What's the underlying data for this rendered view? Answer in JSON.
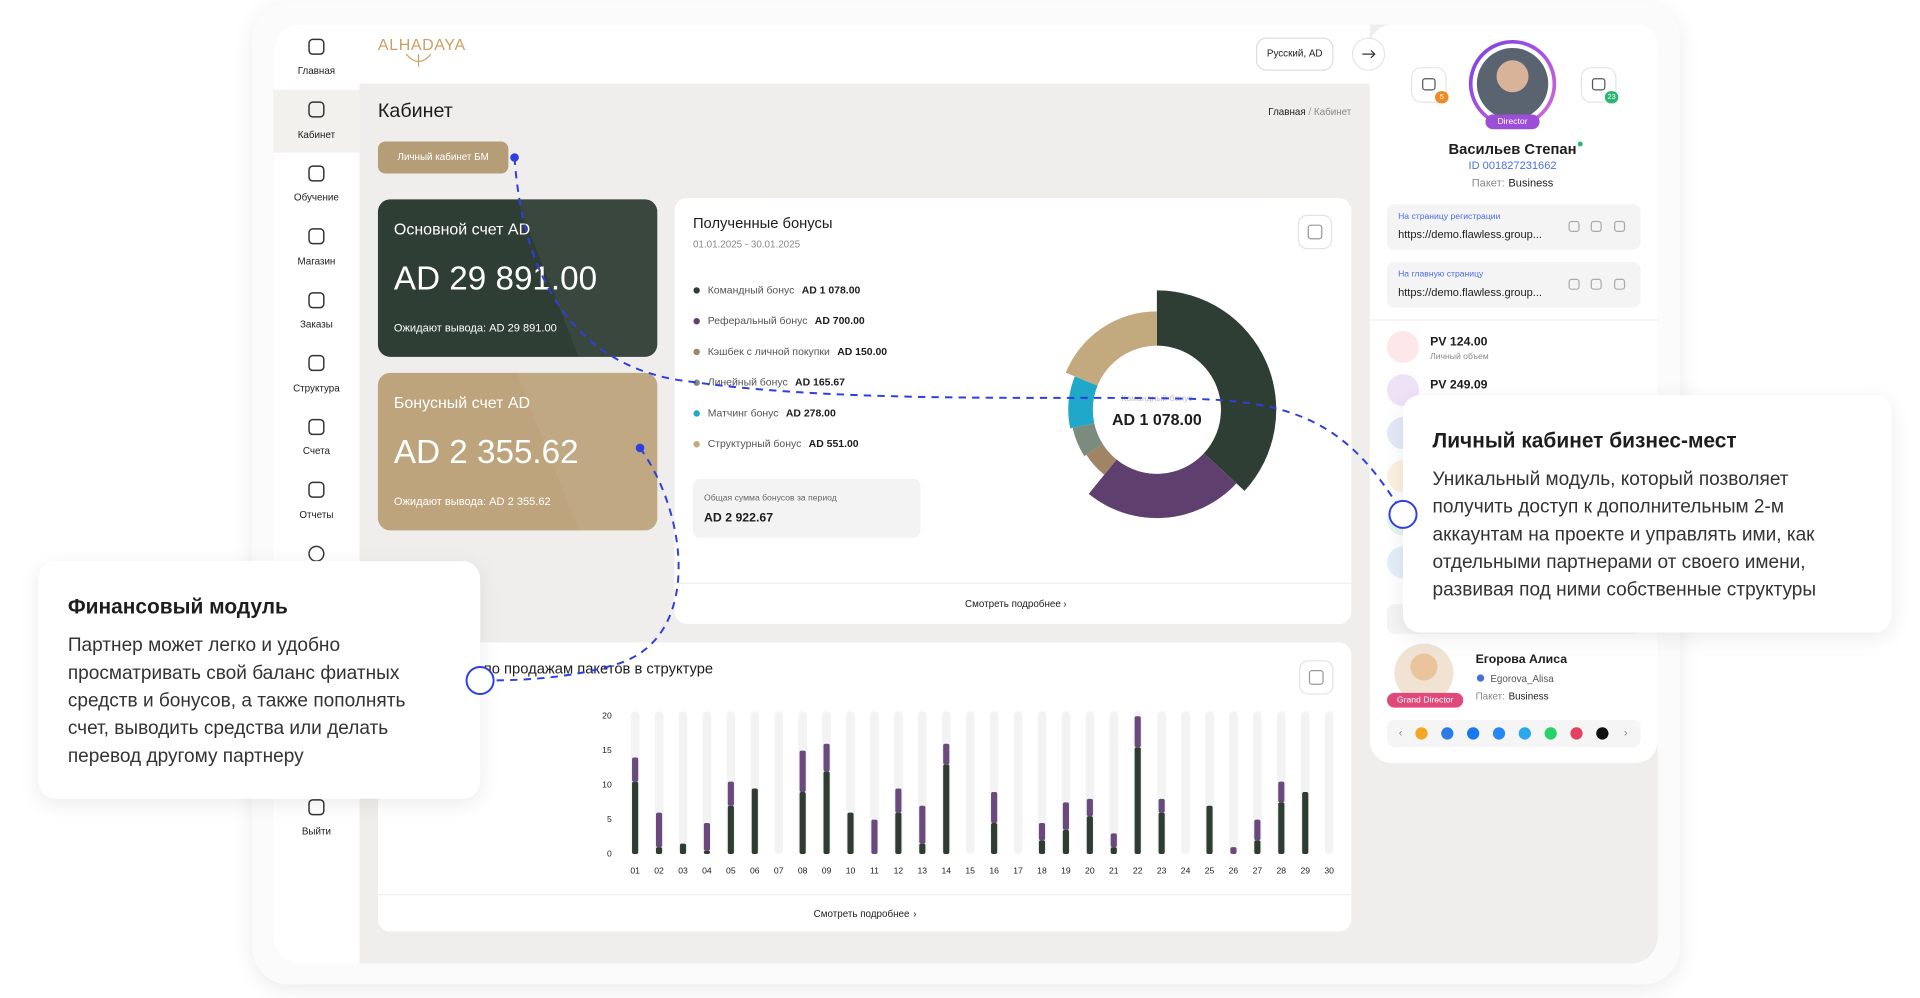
{
  "sidebar": {
    "items": [
      "Главная",
      "Кабинет",
      "Обучение",
      "Магазин",
      "Заказы",
      "Структура",
      "Счета",
      "Отчеты",
      "Выйти"
    ]
  },
  "header": {
    "logo": "ALHADAYA",
    "language": "Русский, AD"
  },
  "page": {
    "title": "Кабинет",
    "breadcrumb": [
      "Главная",
      "Кабинет"
    ],
    "tab": "Личный кабинет БМ"
  },
  "accounts": [
    {
      "title": "Основной счет AD",
      "balance": "AD 29 891.00",
      "pending": "Ожидают вывода: AD 29 891.00",
      "color": "#2f3e34"
    },
    {
      "title": "Бонусный счет AD",
      "balance": "AD 2 355.62",
      "pending": "Ожидают вывода: AD 2 355.62",
      "color": "#bda47c"
    }
  ],
  "bonuses": {
    "title": "Полученные бонусы",
    "period": "01.01.2025 - 30.01.2025",
    "items": [
      {
        "name": "Командный бонус",
        "value": 1078,
        "value_label": "AD 1 078.00",
        "color": "#2f3e34"
      },
      {
        "name": "Реферальный бонус",
        "value": 700,
        "value_label": "AD 700.00",
        "color": "#5e3f6e"
      },
      {
        "name": "Кэшбек с личной покупки",
        "value": 150,
        "value_label": "AD 150.00",
        "color": "#a08466"
      },
      {
        "name": "Линейный бонус",
        "value": 165.67,
        "value_label": "AD 165.67",
        "color": "#7b8c7e"
      },
      {
        "name": "Матчинг бонус",
        "value": 278,
        "value_label": "AD 278.00",
        "color": "#1fa8c9"
      },
      {
        "name": "Структурный бонус",
        "value": 551,
        "value_label": "AD 551.00",
        "color": "#c2a97e"
      }
    ],
    "total_label": "Общая сумма бонусов за период",
    "total": "AD 2 922.67",
    "more": "Смотреть подробнее"
  },
  "sales_chart": {
    "title": "по продажам пакетов в структуре",
    "categories": [
      "01",
      "02",
      "03",
      "04",
      "05",
      "06",
      "07",
      "08",
      "09",
      "10",
      "11",
      "12",
      "13",
      "14",
      "15",
      "16",
      "17",
      "18",
      "19",
      "20",
      "21",
      "22",
      "23",
      "24",
      "25",
      "26",
      "27",
      "28",
      "29",
      "30"
    ],
    "series": [
      {
        "color": "#2e3d31",
        "values": [
          10.5,
          1,
          1.5,
          0.5,
          7,
          9.5,
          0,
          9,
          12,
          6,
          0,
          6,
          1.5,
          13,
          0,
          4.5,
          0,
          2,
          3.5,
          5.5,
          1,
          15.5,
          6,
          0,
          7,
          0,
          2,
          7.5,
          9,
          0
        ]
      },
      {
        "color": "#6a4a7c",
        "values": [
          3.5,
          5,
          0,
          4,
          3.5,
          0,
          0,
          6,
          4,
          0,
          5,
          3.5,
          5.5,
          3,
          0,
          4.5,
          0,
          2.5,
          4,
          2.5,
          2,
          4.5,
          2,
          0,
          0,
          1,
          3,
          3,
          0,
          0
        ]
      }
    ],
    "ylim": [
      0,
      20
    ],
    "yticks": [
      0,
      5,
      10,
      15,
      20
    ],
    "more": "Смотреть подробнее"
  },
  "profile": {
    "role": "Director",
    "name": "Васильев Степан",
    "id": "ID 001827231662",
    "package_label": "Пакет:",
    "package": "Business",
    "notifications": 5,
    "messages": 23,
    "links": [
      {
        "label": "На страницу регистрации",
        "url": "https://demo.flawless.group..."
      },
      {
        "label": "На главную страницу",
        "url": "https://demo.flawless.group..."
      }
    ]
  },
  "stats": [
    {
      "value": "PV 124.00",
      "label": "Личный объем"
    },
    {
      "value": "PV 249.09"
    }
  ],
  "sponsor": {
    "role": "Grand Director",
    "name": "Егорова Алиса",
    "username": "Egorova_Alisa",
    "package_label": "Пакет:",
    "package": "Business"
  },
  "callouts": [
    {
      "title": "Финансовый модуль",
      "lines": [
        "Партнер может легко и удобно",
        "просматривать свой баланс фиатных",
        "средств и бонусов, а также пополнять",
        "счет, выводить средства или делать",
        "перевод другому партнеру"
      ]
    },
    {
      "title": "Личный кабинет бизнес-мест",
      "lines": [
        "Уникальный модуль, который позволяет",
        "получить доступ к дополнительным 2-м",
        "аккаунтам на проекте и управлять ими, как",
        "отдельными партнерами от своего имени,",
        "развивая под ними собственные структуры"
      ]
    }
  ]
}
